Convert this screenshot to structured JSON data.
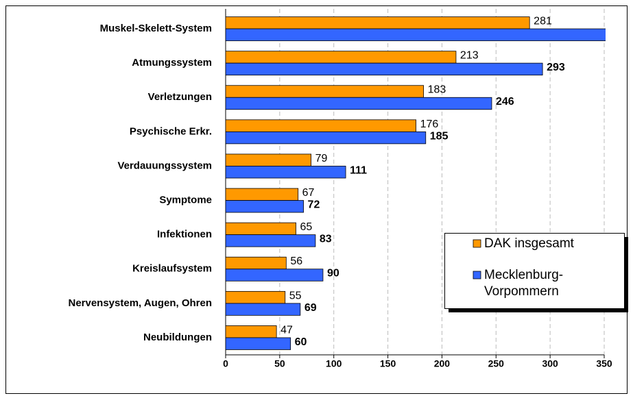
{
  "chart_data": {
    "type": "bar",
    "orientation": "horizontal",
    "categories": [
      "Muskel-Skelett-System",
      "Atmungssystem",
      "Verletzungen",
      "Psychische Erkr.",
      "Verdauungssystem",
      "Symptome",
      "Infektionen",
      "Kreislaufsystem",
      "Nervensystem, Augen, Ohren",
      "Neubildungen"
    ],
    "series": [
      {
        "name": "DAK insgesamt",
        "color": "#ff9900",
        "values": [
          281,
          213,
          183,
          176,
          79,
          67,
          65,
          56,
          55,
          47
        ]
      },
      {
        "name": "Mecklenburg-Vorpommern",
        "color": "#3366ff",
        "values": [
          355,
          293,
          246,
          185,
          111,
          72,
          83,
          90,
          69,
          60
        ]
      }
    ],
    "xlim": [
      0,
      350
    ],
    "xticks": [
      0,
      50,
      100,
      150,
      200,
      250,
      300,
      350
    ],
    "grid": true,
    "legend": "lower right"
  }
}
